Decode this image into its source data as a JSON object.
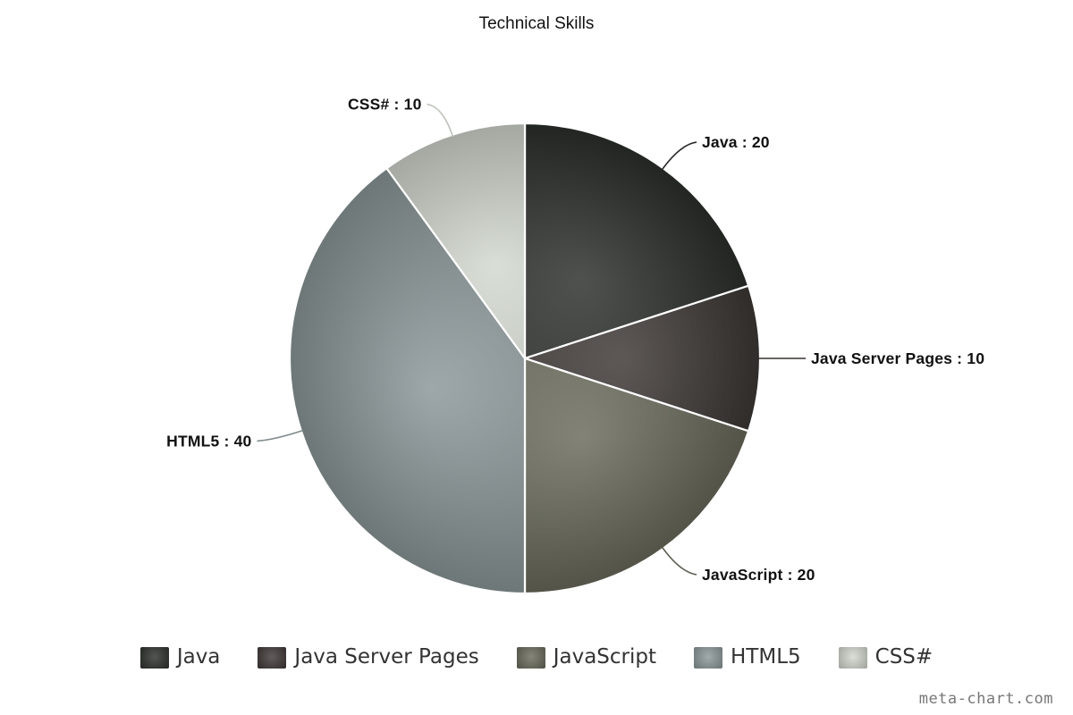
{
  "chart_data": {
    "type": "pie",
    "title": "Technical Skills",
    "categories": [
      "Java",
      "Java Server Pages",
      "JavaScript",
      "HTML5",
      "CSS#"
    ],
    "values": [
      20,
      10,
      20,
      40,
      10
    ],
    "data_labels": [
      "Java : 20",
      "Java Server Pages : 10",
      "JavaScript : 20",
      "HTML5 : 40",
      "CSS# : 10"
    ],
    "colors": [
      "#2c302b",
      "#3e3836",
      "#6a6b5c",
      "#8c989a",
      "#d2d8cf"
    ],
    "legend": {
      "position": "bottom",
      "entries": [
        "Java",
        "Java Server Pages",
        "JavaScript",
        "HTML5",
        "CSS#"
      ]
    }
  },
  "watermark": "meta-chart.com"
}
